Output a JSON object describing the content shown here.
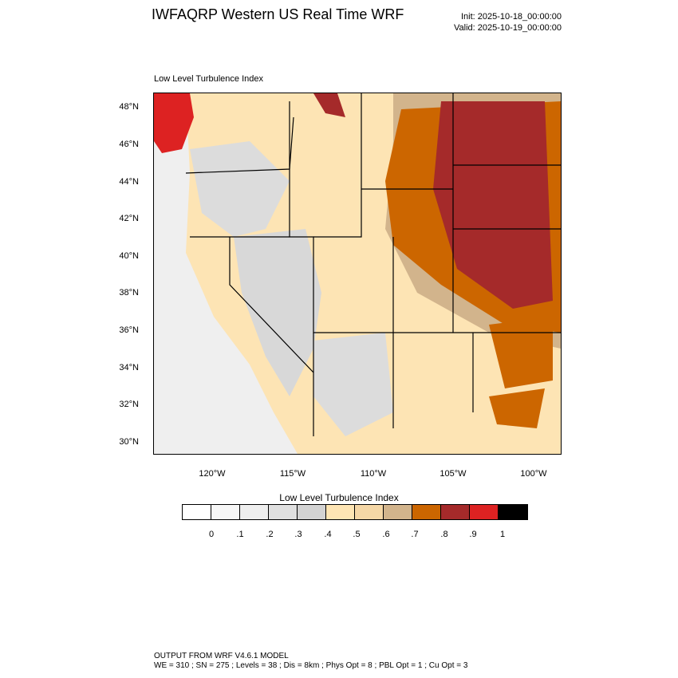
{
  "header": {
    "title": "IWFAQRP Western US Real Time WRF",
    "init": "Init: 2025-10-18_00:00:00",
    "valid": "Valid: 2025-10-19_00:00:00"
  },
  "map": {
    "subtitle": "Low Level Turbulence Index",
    "lat_labels": [
      "48°N",
      "46°N",
      "44°N",
      "42°N",
      "40°N",
      "38°N",
      "36°N",
      "34°N",
      "32°N",
      "30°N"
    ],
    "lon_labels": [
      "120°W",
      "115°W",
      "110°W",
      "105°W",
      "100°W"
    ],
    "colors": {
      "ocean": "#efefef",
      "low": "#d8d8d8",
      "mid": "#fde4b4",
      "tan": "#d2b48c",
      "orange": "#cc6600",
      "brick": "#a52a2a",
      "red": "#dd2222"
    }
  },
  "colorbar": {
    "title": "Low Level Turbulence Index",
    "colors": [
      "#ffffff",
      "#f7f7f7",
      "#efefef",
      "#e0e0e0",
      "#d3d3d3",
      "#fee5b4",
      "#f5d7a6",
      "#d2b48c",
      "#cc6600",
      "#a52a2a",
      "#dd2222",
      "#000000"
    ],
    "labels": [
      "0",
      ".1",
      ".2",
      ".3",
      ".4",
      ".5",
      ".6",
      ".7",
      ".8",
      ".9",
      "1"
    ]
  },
  "footer": {
    "line1": "OUTPUT FROM WRF V4.6.1 MODEL",
    "line2": "WE = 310 ; SN = 275 ; Levels = 38 ; Dis = 8km ; Phys Opt = 8 ; PBL Opt = 1 ; Cu Opt = 3"
  }
}
